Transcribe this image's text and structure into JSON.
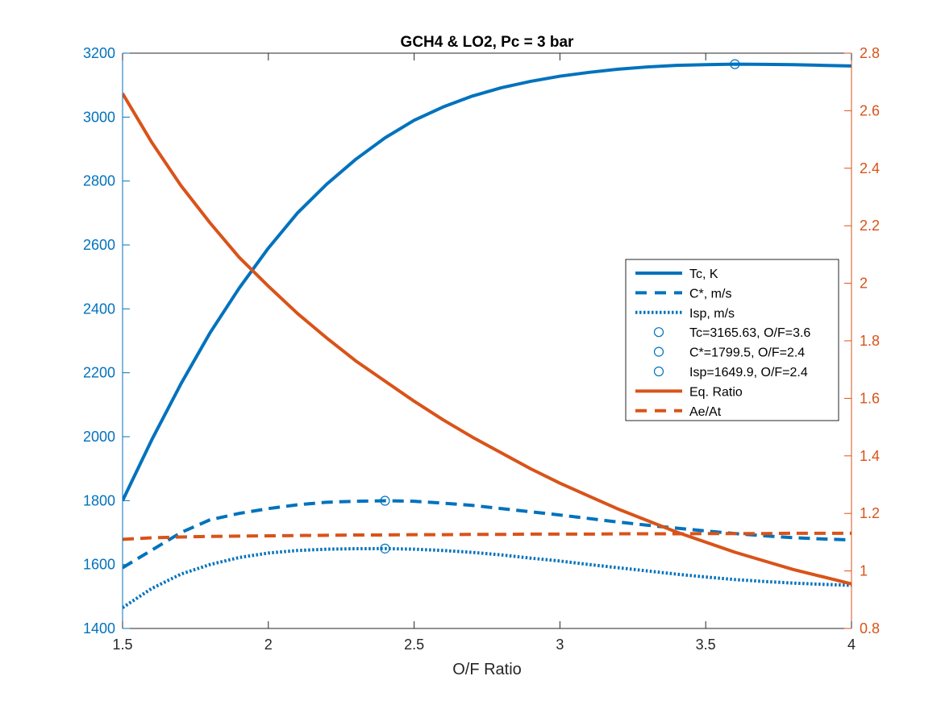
{
  "chart_data": {
    "type": "line",
    "title": "GCH4 & LO2, Pc = 3 bar",
    "xlabel": "O/F Ratio",
    "ylabel_left": "",
    "ylabel_right": "",
    "xlim": [
      1.5,
      4
    ],
    "ylim_left": [
      1400,
      3200
    ],
    "ylim_right": [
      0.8,
      2.8
    ],
    "x_ticks": [
      "1.5",
      "2",
      "2.5",
      "3",
      "3.5",
      "4"
    ],
    "y_left_ticks": [
      "1400",
      "1600",
      "1800",
      "2000",
      "2200",
      "2400",
      "2600",
      "2800",
      "3000",
      "3200"
    ],
    "y_right_ticks": [
      "0.8",
      "1",
      "1.2",
      "1.4",
      "1.6",
      "1.8",
      "2",
      "2.2",
      "2.4",
      "2.6",
      "2.8"
    ],
    "grid": false,
    "legend_position": "right",
    "colors": {
      "left": "#0072BD",
      "right": "#D95319"
    },
    "x": [
      1.5,
      1.6,
      1.7,
      1.8,
      1.9,
      2.0,
      2.1,
      2.2,
      2.3,
      2.4,
      2.5,
      2.6,
      2.7,
      2.8,
      2.9,
      3.0,
      3.1,
      3.2,
      3.3,
      3.4,
      3.5,
      3.6,
      3.7,
      3.8,
      3.9,
      4.0
    ],
    "series": [
      {
        "name": "Tc, K",
        "axis": "left",
        "style": "solid",
        "values": [
          1800,
          1990,
          2165,
          2325,
          2465,
          2590,
          2700,
          2790,
          2868,
          2935,
          2990,
          3032,
          3066,
          3092,
          3112,
          3128,
          3140,
          3150,
          3157,
          3162,
          3164,
          3165.63,
          3165,
          3164,
          3162,
          3160
        ]
      },
      {
        "name": "C*, m/s",
        "axis": "left",
        "style": "dashed",
        "values": [
          1590,
          1645,
          1700,
          1740,
          1760,
          1775,
          1787,
          1795,
          1798,
          1799.5,
          1798,
          1792,
          1785,
          1775,
          1765,
          1755,
          1744,
          1733,
          1723,
          1714,
          1705,
          1697,
          1690,
          1684,
          1680,
          1677
        ]
      },
      {
        "name": "Isp, m/s",
        "axis": "left",
        "style": "dotted",
        "values": [
          1465,
          1525,
          1570,
          1600,
          1622,
          1636,
          1644,
          1648,
          1649.5,
          1649.9,
          1648,
          1644,
          1638,
          1630,
          1620,
          1611,
          1600,
          1590,
          1580,
          1570,
          1561,
          1553,
          1547,
          1542,
          1538,
          1535
        ]
      },
      {
        "name": "Eq. Ratio",
        "axis": "right",
        "style": "solid",
        "values": [
          2.66,
          2.49,
          2.34,
          2.21,
          2.09,
          1.99,
          1.895,
          1.81,
          1.73,
          1.66,
          1.59,
          1.525,
          1.465,
          1.41,
          1.355,
          1.305,
          1.26,
          1.215,
          1.175,
          1.135,
          1.1,
          1.065,
          1.035,
          1.005,
          0.98,
          0.955
        ]
      },
      {
        "name": "Ae/At",
        "axis": "right",
        "style": "dashed",
        "values": [
          1.11,
          1.115,
          1.118,
          1.12,
          1.121,
          1.122,
          1.123,
          1.124,
          1.125,
          1.125,
          1.126,
          1.126,
          1.127,
          1.127,
          1.128,
          1.128,
          1.128,
          1.129,
          1.129,
          1.129,
          1.13,
          1.13,
          1.13,
          1.131,
          1.131,
          1.131
        ]
      }
    ],
    "markers": [
      {
        "name": "Tc=3165.63, O/F=3.6",
        "x": 3.6,
        "y": 3165.63
      },
      {
        "name": "C*=1799.5, O/F=2.4",
        "x": 2.4,
        "y": 1799.5
      },
      {
        "name": "Isp=1649.9, O/F=2.4",
        "x": 2.4,
        "y": 1649.9
      }
    ],
    "legend": [
      "Tc, K",
      "C*, m/s",
      "Isp, m/s",
      "Tc=3165.63, O/F=3.6",
      "C*=1799.5, O/F=2.4",
      "Isp=1649.9, O/F=2.4",
      "Eq. Ratio",
      "Ae/At"
    ]
  }
}
